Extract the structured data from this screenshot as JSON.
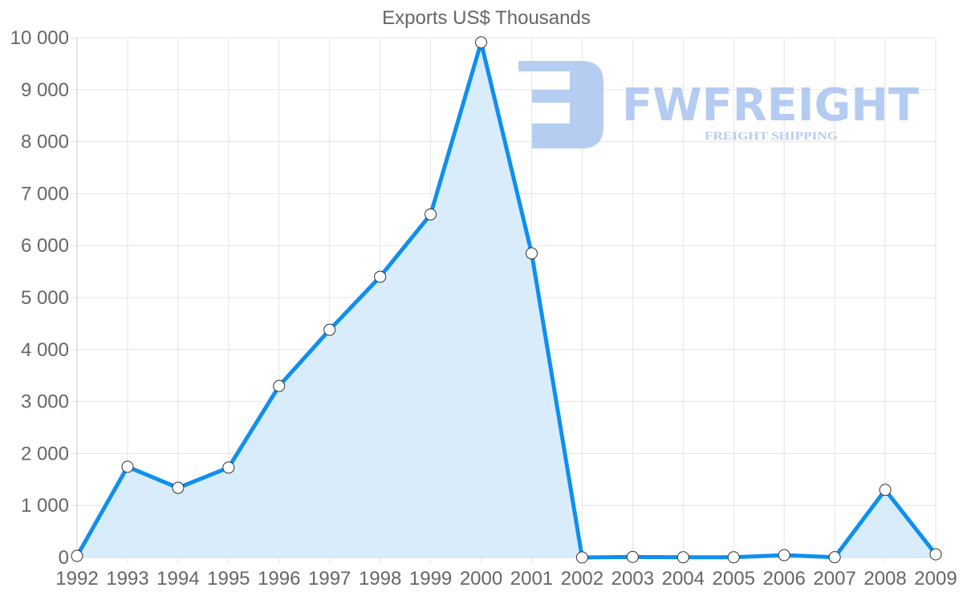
{
  "chart_data": {
    "type": "area",
    "title": "Exports US$ Thousands",
    "xlabel": "",
    "ylabel": "",
    "categories": [
      "1992",
      "1993",
      "1994",
      "1995",
      "1996",
      "1997",
      "1998",
      "1999",
      "2000",
      "2001",
      "2002",
      "2003",
      "2004",
      "2005",
      "2006",
      "2007",
      "2008",
      "2009"
    ],
    "series": [
      {
        "name": "Exports US$ Thousands",
        "values": [
          30,
          1745,
          1340,
          1730,
          3300,
          4380,
          5400,
          6600,
          9910,
          5850,
          0,
          10,
          3,
          3,
          45,
          5,
          1300,
          60
        ],
        "line_color": "#0f8fef",
        "fill_color": "#d8ecfc",
        "point_fill": "#ffffff",
        "point_stroke": "#333333"
      }
    ],
    "ylim": [
      0,
      10000
    ],
    "yticks": [
      0,
      1000,
      2000,
      3000,
      4000,
      5000,
      6000,
      7000,
      8000,
      9000,
      10000
    ],
    "ytick_labels": [
      "0",
      "1 000",
      "2 000",
      "3 000",
      "4 000",
      "5 000",
      "6 000",
      "7 000",
      "8 000",
      "9 000",
      "10 000"
    ],
    "grid": true,
    "legend": null
  },
  "watermark": {
    "brand": "FWFREIGHT",
    "tagline": "FREIGHT SHIPPING",
    "color": "#a9c4f0"
  }
}
